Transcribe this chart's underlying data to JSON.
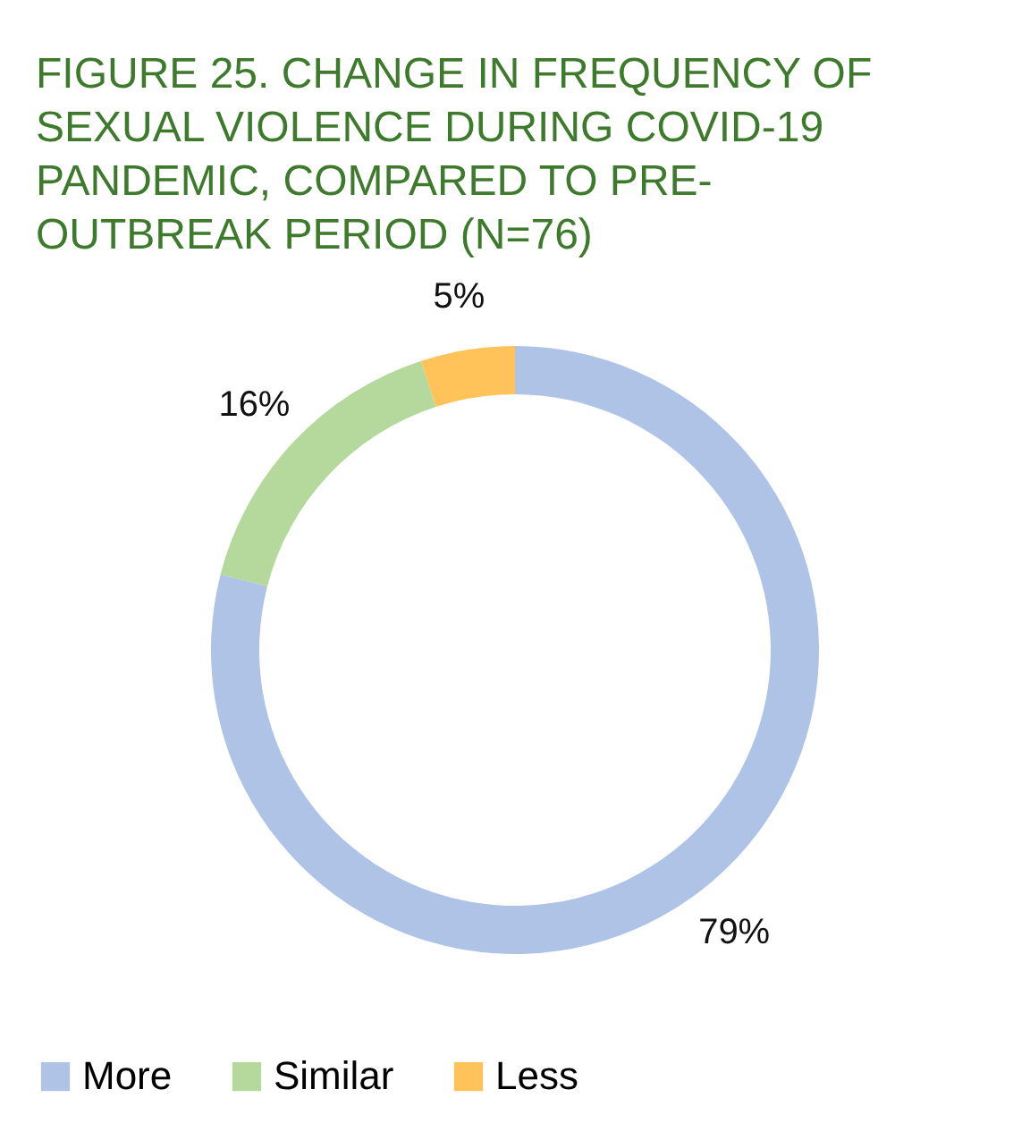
{
  "chart_data": {
    "type": "donut",
    "title": "FIGURE 25. CHANGE IN FREQUENCY OF SEXUAL VIOLENCE DURING COVID-19 PANDEMIC, COMPARED TO PRE-OUTBREAK PERIOD (N=76)",
    "categories": [
      "More",
      "Similar",
      "Less"
    ],
    "values": [
      79,
      16,
      5
    ],
    "value_labels": [
      "79%",
      "16%",
      "5%"
    ],
    "colors": [
      "#aec3e6",
      "#b5d99c",
      "#ffc35a"
    ],
    "legend": "bottom"
  }
}
